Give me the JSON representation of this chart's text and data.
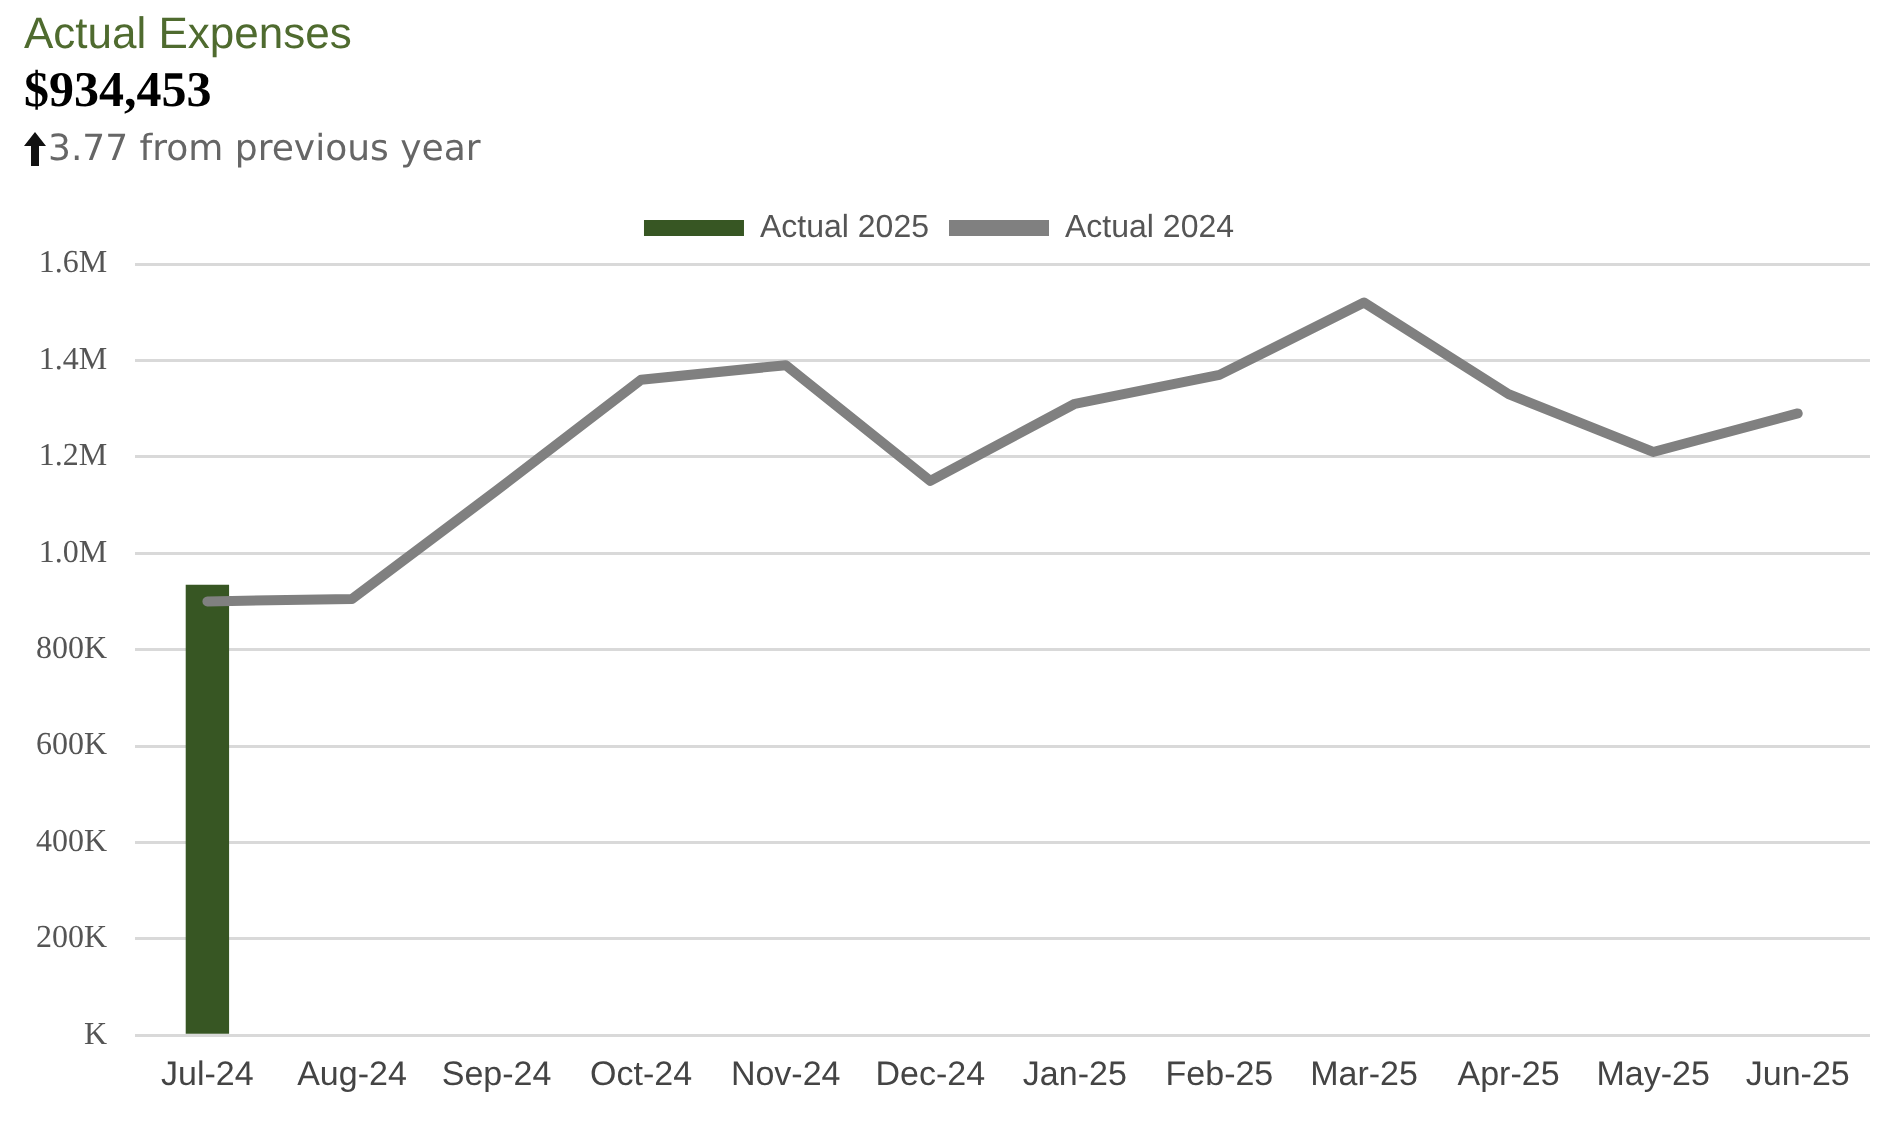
{
  "chart_data": {
    "type": "bar",
    "title": "Actual Expenses",
    "subtitle": "$934,453",
    "annotations": [
      "3.77 from previous year"
    ],
    "categories": [
      "Jul-24",
      "Aug-24",
      "Sep-24",
      "Oct-24",
      "Nov-24",
      "Dec-24",
      "Jan-25",
      "Feb-25",
      "Mar-25",
      "Apr-25",
      "May-25",
      "Jun-25"
    ],
    "series": [
      {
        "name": "Actual 2025",
        "color": "#375623",
        "values": [
          934453,
          null,
          null,
          null,
          null,
          null,
          null,
          null,
          null,
          null,
          null,
          null
        ]
      },
      {
        "name": "Actual 2024",
        "type": "line",
        "color": "#808080",
        "values": [
          900000,
          905000,
          1130000,
          1360000,
          1390000,
          1150000,
          1310000,
          1370000,
          1520000,
          1330000,
          1210000,
          1290000
        ]
      }
    ],
    "ylim": [
      0,
      1600000
    ],
    "yticks": [
      {
        "value": 0,
        "label": "K"
      },
      {
        "value": 200000,
        "label": "200K"
      },
      {
        "value": 400000,
        "label": "400K"
      },
      {
        "value": 600000,
        "label": "600K"
      },
      {
        "value": 800000,
        "label": "800K"
      },
      {
        "value": 1000000,
        "label": "1.0M"
      },
      {
        "value": 1200000,
        "label": "1.2M"
      },
      {
        "value": 1400000,
        "label": "1.4M"
      },
      {
        "value": 1600000,
        "label": "1.6M"
      }
    ],
    "grid": "y",
    "legend": "top",
    "marker": "none"
  }
}
